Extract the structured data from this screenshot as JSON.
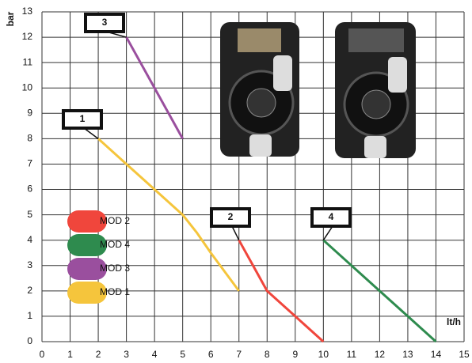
{
  "chart_data": {
    "type": "line",
    "x_label": "lt/h",
    "y_label": "bar",
    "xlim": [
      0,
      15
    ],
    "xticks": [
      0,
      1,
      2,
      3,
      4,
      5,
      6,
      7,
      8,
      9,
      10,
      11,
      12,
      13,
      14,
      15
    ],
    "ylim": [
      0,
      13
    ],
    "yticks": [
      0,
      1,
      2,
      3,
      4,
      5,
      6,
      7,
      8,
      9,
      10,
      11,
      12,
      13
    ],
    "grid": true,
    "annotations": [
      "1",
      "2",
      "3",
      "4"
    ],
    "series": [
      {
        "name": "MOD 2",
        "color": "#f0463c",
        "x": [
          7,
          7.5,
          8,
          9,
          10
        ],
        "values": [
          4,
          3,
          2,
          1,
          0
        ]
      },
      {
        "name": "MOD 4",
        "color": "#2e8b4e",
        "x": [
          10,
          12,
          14
        ],
        "values": [
          4,
          2,
          0
        ]
      },
      {
        "name": "MOD 3",
        "color": "#9a4f9e",
        "x": [
          3,
          4,
          5
        ],
        "values": [
          12,
          10,
          8
        ]
      },
      {
        "name": "MOD 1",
        "color": "#f5c53c",
        "x": [
          2,
          3,
          4,
          5,
          5.5,
          6,
          7
        ],
        "values": [
          8,
          7,
          6,
          5,
          4.3,
          3.5,
          2
        ]
      }
    ]
  }
}
